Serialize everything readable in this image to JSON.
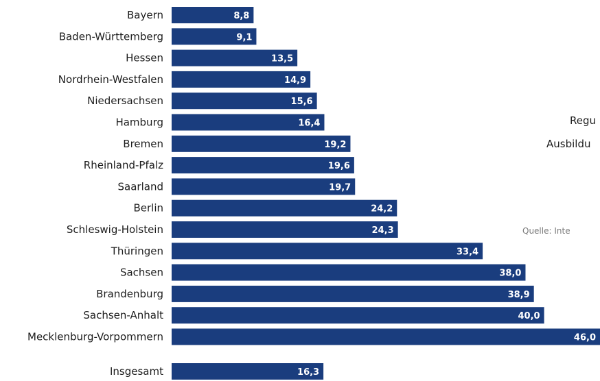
{
  "colors": {
    "bar": "#1a3d7e",
    "label": "#1d1d1d",
    "value_label": "#ffffff",
    "source": "#7a7a7a"
  },
  "side_text": {
    "line1": "Regu",
    "line2": "Ausbildu",
    "source": "Quelle: Inte"
  },
  "chart_data": {
    "type": "bar",
    "orientation": "horizontal",
    "categories": [
      "Bayern",
      "Baden-Württemberg",
      "Hessen",
      "Nordrhein-Westfalen",
      "Niedersachsen",
      "Hamburg",
      "Bremen",
      "Rheinland-Pfalz",
      "Saarland",
      "Berlin",
      "Schleswig-Holstein",
      "Thüringen",
      "Sachsen",
      "Brandenburg",
      "Sachsen-Anhalt",
      "Mecklenburg-Vorpommern",
      "Insgesamt"
    ],
    "values": [
      8.8,
      9.1,
      13.5,
      14.9,
      15.6,
      16.4,
      19.2,
      19.6,
      19.7,
      24.2,
      24.3,
      33.4,
      38.0,
      38.9,
      40.0,
      46.0,
      16.3
    ],
    "value_labels": [
      "8,8",
      "9,1",
      "13,5",
      "14,9",
      "15,6",
      "16,4",
      "19,2",
      "19,6",
      "19,7",
      "24,2",
      "24,3",
      "33,4",
      "38,0",
      "38,9",
      "40,0",
      "46,0",
      "16,3"
    ],
    "xlim": [
      0,
      46.0
    ],
    "grid": false,
    "legend": "none"
  }
}
